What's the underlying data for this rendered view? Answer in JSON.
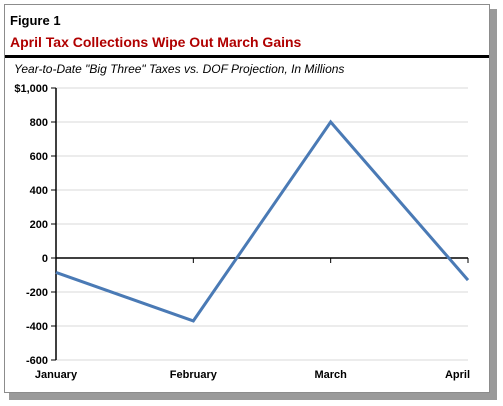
{
  "figure_label": "Figure 1",
  "figure_title": "April  Tax Collections  Wipe  Out March  Gains",
  "subtitle": "Year-to-Date \"Big Three\" Taxes vs. DOF Projection, In Millions",
  "chart_data": {
    "type": "line",
    "title": "April  Tax Collections  Wipe  Out March  Gains",
    "subtitle": "Year-to-Date \"Big Three\" Taxes vs. DOF Projection, In Millions",
    "xlabel": "",
    "ylabel": "",
    "categories": [
      "January",
      "February",
      "March",
      "April"
    ],
    "ylim": [
      -600,
      1000
    ],
    "yticks": [
      -600,
      -400,
      -200,
      0,
      200,
      400,
      600,
      800,
      1000
    ],
    "ytick_labels": [
      "-600",
      "-400",
      "-200",
      "0",
      "200",
      "400",
      "600",
      "800",
      "$1,000"
    ],
    "grid": true,
    "series": [
      {
        "x_positions": [
          0,
          1,
          2,
          3
        ],
        "values": [
          -85,
          -370,
          800,
          -130
        ],
        "color": "#4a7ab5"
      }
    ],
    "colors": {
      "line": "#4a7ab5",
      "grid": "#d9d9d9",
      "title": "#b00000"
    }
  }
}
